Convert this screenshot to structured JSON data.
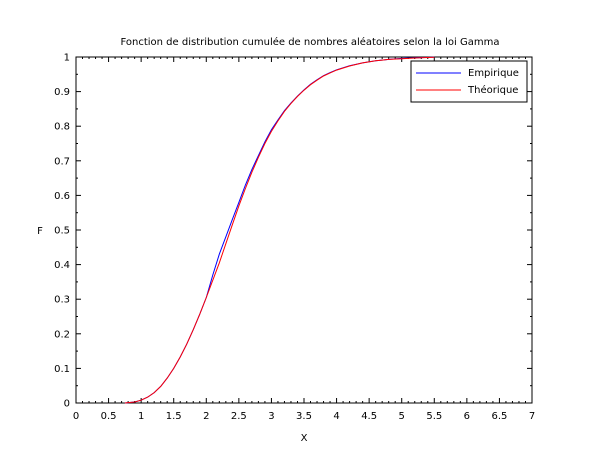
{
  "chart_data": {
    "type": "line",
    "title": "Fonction de distribution cumulée de nombres aléatoires selon la loi Gamma",
    "xlabel": "X",
    "ylabel": "F",
    "xlim": [
      0,
      7
    ],
    "ylim": [
      0,
      1
    ],
    "x_ticks": [
      "0",
      "0.5",
      "1",
      "1.5",
      "2",
      "2.5",
      "3",
      "3.5",
      "4",
      "4.5",
      "5",
      "5.5",
      "6",
      "6.5",
      "7"
    ],
    "y_ticks": [
      "0",
      "0.1",
      "0.2",
      "0.3",
      "0.4",
      "0.5",
      "0.6",
      "0.7",
      "0.8",
      "0.9",
      "1"
    ],
    "grid": false,
    "legend_position": "top-right",
    "x": [
      0.75,
      0.9,
      1.0,
      1.1,
      1.2,
      1.3,
      1.4,
      1.5,
      1.6,
      1.7,
      1.8,
      1.9,
      2.0,
      2.1,
      2.2,
      2.3,
      2.4,
      2.5,
      2.6,
      2.7,
      2.8,
      2.9,
      3.0,
      3.1,
      3.2,
      3.3,
      3.4,
      3.5,
      3.6,
      3.7,
      3.8,
      3.9,
      4.0,
      4.2,
      4.4,
      4.6,
      4.8,
      5.0,
      5.2,
      5.5
    ],
    "series": [
      {
        "name": "Empirique",
        "color": "#0000ff",
        "values": [
          0.0,
          0.003,
          0.008,
          0.017,
          0.03,
          0.048,
          0.072,
          0.1,
          0.133,
          0.17,
          0.212,
          0.257,
          0.305,
          0.37,
          0.43,
          0.48,
          0.53,
          0.58,
          0.63,
          0.675,
          0.715,
          0.755,
          0.79,
          0.818,
          0.845,
          0.867,
          0.887,
          0.905,
          0.921,
          0.934,
          0.946,
          0.955,
          0.963,
          0.975,
          0.983,
          0.989,
          0.993,
          0.996,
          0.998,
          0.999
        ]
      },
      {
        "name": "Théorique",
        "color": "#ff0000",
        "values": [
          0.0,
          0.003,
          0.008,
          0.017,
          0.03,
          0.048,
          0.072,
          0.1,
          0.133,
          0.17,
          0.212,
          0.257,
          0.305,
          0.355,
          0.405,
          0.46,
          0.515,
          0.57,
          0.62,
          0.667,
          0.71,
          0.75,
          0.785,
          0.815,
          0.843,
          0.866,
          0.886,
          0.904,
          0.92,
          0.933,
          0.945,
          0.954,
          0.962,
          0.974,
          0.983,
          0.989,
          0.993,
          0.995,
          0.997,
          0.999
        ]
      }
    ]
  }
}
